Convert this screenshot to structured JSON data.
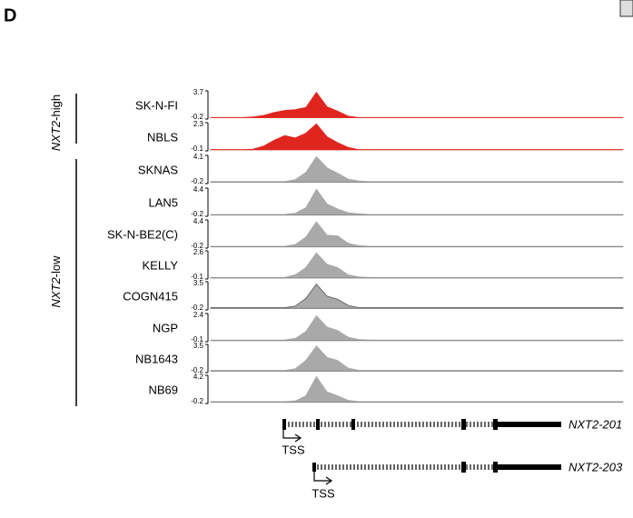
{
  "panel_label": "D",
  "chart_data": {
    "type": "area",
    "groups": [
      {
        "gene": "NXT2",
        "suffix": "-high"
      },
      {
        "gene": "NXT2",
        "suffix": "-low"
      }
    ],
    "tracks": [
      {
        "name": "SK-N-FI",
        "color": "#e0251f",
        "ylim": [
          -0.2,
          3.7
        ],
        "values": [
          0,
          0,
          0,
          0,
          0.1,
          0.3,
          0.7,
          1.0,
          1.1,
          1.4,
          3.5,
          1.5,
          0.9,
          0.2,
          0,
          0,
          0,
          0,
          0,
          0,
          0,
          0,
          0,
          0,
          0,
          0,
          0,
          0,
          0,
          0,
          0,
          0,
          0,
          0,
          0,
          0,
          0,
          0,
          0,
          0
        ]
      },
      {
        "name": "NBLS",
        "color": "#e0251f",
        "ylim": [
          -0.1,
          2.3
        ],
        "values": [
          0,
          0,
          0,
          0,
          0.05,
          0.3,
          0.8,
          1.2,
          1.0,
          1.4,
          2.2,
          1.1,
          0.6,
          0.2,
          0,
          0,
          0,
          0,
          0,
          0,
          0,
          0,
          0,
          0,
          0,
          0,
          0,
          0,
          0,
          0,
          0,
          0,
          0,
          0,
          0,
          0,
          0,
          0,
          0,
          0
        ]
      },
      {
        "name": "SKNAS",
        "color": "#a9a9a9",
        "ylim": [
          -0.2,
          4.1
        ],
        "values": [
          0.1,
          0.1,
          0.1,
          0.1,
          0.1,
          0.1,
          0.1,
          0.1,
          0.4,
          1.5,
          3.9,
          2.2,
          1.4,
          0.5,
          0.2,
          0.1,
          0.1,
          0.1,
          0.1,
          0.1,
          0.1,
          0.1,
          0.1,
          0.1,
          0.1,
          0.1,
          0.1,
          0.1,
          0.1,
          0.1,
          0.1,
          0.1,
          0.1,
          0.1,
          0.1,
          0.1,
          0.1,
          0.1,
          0.1,
          0.1
        ]
      },
      {
        "name": "LAN5",
        "color": "#a9a9a9",
        "ylim": [
          -0.2,
          4.4
        ],
        "values": [
          0.1,
          0.1,
          0.1,
          0.1,
          0.1,
          0.1,
          0.1,
          0.1,
          0.3,
          1.2,
          4.2,
          1.8,
          1.0,
          0.4,
          0.2,
          0.1,
          0.1,
          0.1,
          0.1,
          0.1,
          0.1,
          0.1,
          0.1,
          0.1,
          0.1,
          0.1,
          0.1,
          0.1,
          0.1,
          0.1,
          0.1,
          0.1,
          0.1,
          0.1,
          0.1,
          0.1,
          0.1,
          0.1,
          0.1,
          0.1
        ]
      },
      {
        "name": "SK-N-BE2(C)",
        "color": "#a9a9a9",
        "ylim": [
          -0.2,
          4.4
        ],
        "values": [
          0.1,
          0.1,
          0.1,
          0.1,
          0.1,
          0.1,
          0.1,
          0.1,
          0.4,
          1.6,
          4.1,
          1.9,
          1.8,
          0.6,
          0.2,
          0.1,
          0.1,
          0.1,
          0.1,
          0.1,
          0.1,
          0.1,
          0.1,
          0.1,
          0.1,
          0.1,
          0.1,
          0.1,
          0.1,
          0.1,
          0.1,
          0.1,
          0.1,
          0.1,
          0.1,
          0.1,
          0.1,
          0.1,
          0.1,
          0.1
        ]
      },
      {
        "name": "KELLY",
        "color": "#a9a9a9",
        "ylim": [
          -0.1,
          2.6
        ],
        "values": [
          0.05,
          0.05,
          0.05,
          0.05,
          0.05,
          0.05,
          0.05,
          0.05,
          0.3,
          1.0,
          2.4,
          1.3,
          1.0,
          0.3,
          0.1,
          0.05,
          0.05,
          0.05,
          0.05,
          0.05,
          0.05,
          0.05,
          0.05,
          0.05,
          0.05,
          0.05,
          0.05,
          0.05,
          0.05,
          0.05,
          0.05,
          0.05,
          0.05,
          0.05,
          0.05,
          0.05,
          0.05,
          0.05,
          0.05,
          0.05
        ]
      },
      {
        "name": "COGN415",
        "color": "#a9a9a9",
        "ylim": [
          -0.2,
          3.5
        ],
        "values": [
          0.1,
          0.1,
          0.1,
          0.1,
          0.1,
          0.1,
          0.1,
          0.1,
          0.3,
          1.3,
          3.2,
          1.6,
          1.2,
          0.4,
          0.1,
          0.1,
          0.1,
          0.1,
          0.1,
          0.1,
          0.1,
          0.1,
          0.1,
          0.1,
          0.1,
          0.1,
          0.1,
          0.1,
          0.1,
          0.1,
          0.1,
          0.1,
          0.1,
          0.1,
          0.1,
          0.1,
          0.1,
          0.1,
          0.1,
          0.1
        ]
      },
      {
        "name": "NGP",
        "color": "#a9a9a9",
        "ylim": [
          -0.1,
          2.4
        ],
        "values": [
          0.05,
          0.05,
          0.05,
          0.05,
          0.05,
          0.05,
          0.05,
          0.05,
          0.2,
          0.8,
          2.2,
          1.2,
          0.9,
          0.3,
          0.1,
          0.05,
          0.05,
          0.05,
          0.05,
          0.05,
          0.05,
          0.05,
          0.05,
          0.05,
          0.05,
          0.05,
          0.05,
          0.05,
          0.05,
          0.05,
          0.05,
          0.05,
          0.05,
          0.05,
          0.05,
          0.05,
          0.05,
          0.05,
          0.05,
          0.05
        ]
      },
      {
        "name": "NB1643",
        "color": "#a9a9a9",
        "ylim": [
          -0.2,
          3.5
        ],
        "values": [
          0.1,
          0.1,
          0.1,
          0.1,
          0.1,
          0.1,
          0.1,
          0.1,
          0.3,
          1.4,
          3.3,
          1.8,
          1.4,
          0.4,
          0.1,
          0.1,
          0.1,
          0.1,
          0.1,
          0.1,
          0.1,
          0.1,
          0.1,
          0.1,
          0.1,
          0.1,
          0.1,
          0.1,
          0.1,
          0.1,
          0.1,
          0.1,
          0.1,
          0.1,
          0.1,
          0.1,
          0.1,
          0.1,
          0.1,
          0.1
        ]
      },
      {
        "name": "NB69",
        "color": "#a9a9a9",
        "ylim": [
          -0.2,
          4.2
        ],
        "values": [
          0.1,
          0.1,
          0.1,
          0.1,
          0.1,
          0.1,
          0.1,
          0.1,
          0.2,
          1.0,
          4.0,
          1.6,
          1.0,
          0.3,
          0.1,
          0.1,
          0.1,
          0.1,
          0.1,
          0.1,
          0.1,
          0.1,
          0.1,
          0.1,
          0.1,
          0.1,
          0.1,
          0.1,
          0.1,
          0.1,
          0.1,
          0.1,
          0.1,
          0.1,
          0.1,
          0.1,
          0.1,
          0.1,
          0.1,
          0.1
        ]
      }
    ],
    "transcripts": [
      {
        "name": "NXT2-201",
        "tss": "TSS"
      },
      {
        "name": "NXT2-203",
        "tss": "TSS"
      }
    ]
  }
}
